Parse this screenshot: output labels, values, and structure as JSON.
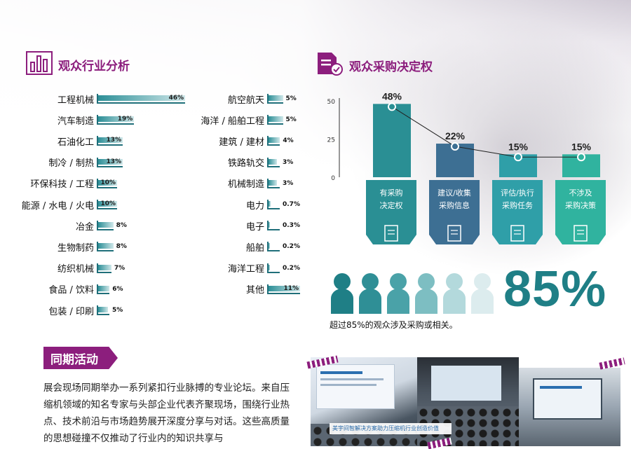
{
  "industry": {
    "title": "观众行业分析",
    "left": [
      {
        "label": "工程机械",
        "pct": "46%",
        "value": 46
      },
      {
        "label": "汽车制造",
        "pct": "19%",
        "value": 19
      },
      {
        "label": "石油化工",
        "pct": "13%",
        "value": 13
      },
      {
        "label": "制冷 / 制热",
        "pct": "13%",
        "value": 13
      },
      {
        "label": "环保科技 / 工程",
        "pct": "10%",
        "value": 10
      },
      {
        "label": "能源 / 水电 / 火电",
        "pct": "10%",
        "value": 10
      },
      {
        "label": "冶金",
        "pct": "8%",
        "value": 8
      },
      {
        "label": "生物制药",
        "pct": "8%",
        "value": 8
      },
      {
        "label": "纺织机械",
        "pct": "7%",
        "value": 7
      },
      {
        "label": "食品 / 饮料",
        "pct": "6%",
        "value": 6
      },
      {
        "label": "包装 / 印刷",
        "pct": "5%",
        "value": 5
      }
    ],
    "right": [
      {
        "label": "航空航天",
        "pct": "5%",
        "value": 5
      },
      {
        "label": "海洋 / 船舶工程",
        "pct": "5%",
        "value": 5
      },
      {
        "label": "建筑 / 建材",
        "pct": "4%",
        "value": 4
      },
      {
        "label": "铁路轨交",
        "pct": "3%",
        "value": 3
      },
      {
        "label": "机械制造",
        "pct": "3%",
        "value": 3
      },
      {
        "label": "电力",
        "pct": "0.7%",
        "value": 0.7
      },
      {
        "label": "电子",
        "pct": "0.3%",
        "value": 0.3
      },
      {
        "label": "船舶",
        "pct": "0.2%",
        "value": 0.2
      },
      {
        "label": "海洋工程",
        "pct": "0.2%",
        "value": 0.2
      },
      {
        "label": "其他",
        "pct": "11%",
        "value": 11
      }
    ]
  },
  "decision": {
    "title": "观众采购决定权",
    "chart_data": {
      "type": "bar",
      "categories": [
        "有采购决定权",
        "建议/收集采购信息",
        "评估/执行采购任务",
        "不涉及采购决策"
      ],
      "category_lines": [
        [
          "有采购",
          "决定权"
        ],
        [
          "建议/收集",
          "采购信息"
        ],
        [
          "评估/执行",
          "采购任务"
        ],
        [
          "不涉及",
          "采购决策"
        ]
      ],
      "values": [
        48,
        22,
        15,
        15
      ],
      "value_labels": [
        "48%",
        "22%",
        "15%",
        "15%"
      ],
      "yticks": [
        0,
        25,
        50
      ],
      "ylim": [
        0,
        55
      ],
      "colors": [
        "#2a8f94",
        "#3d6f93",
        "#2f9fa8",
        "#30b39f"
      ]
    },
    "people_colors": [
      "#1f7f86",
      "#2f8f96",
      "#4aa2a8",
      "#7dbec2",
      "#b3d9dc",
      "#dcecee"
    ],
    "big_pct": "85%",
    "caption": "超过85%的观众涉及采购或相关。"
  },
  "activity": {
    "title": "同期活动",
    "text": "展会现场同期举办一系列紧扣行业脉搏的专业论坛。来自压缩机领域的知名专家与头部企业代表齐聚现场，围绕行业热点、技术前沿与市场趋势展开深度分享与对话。这些高质量的思想碰撞不仅推动了行业内的知识共享与"
  },
  "photos": {
    "banner_text": "美宇间智解决方案助力压缩机行业创造价值"
  }
}
